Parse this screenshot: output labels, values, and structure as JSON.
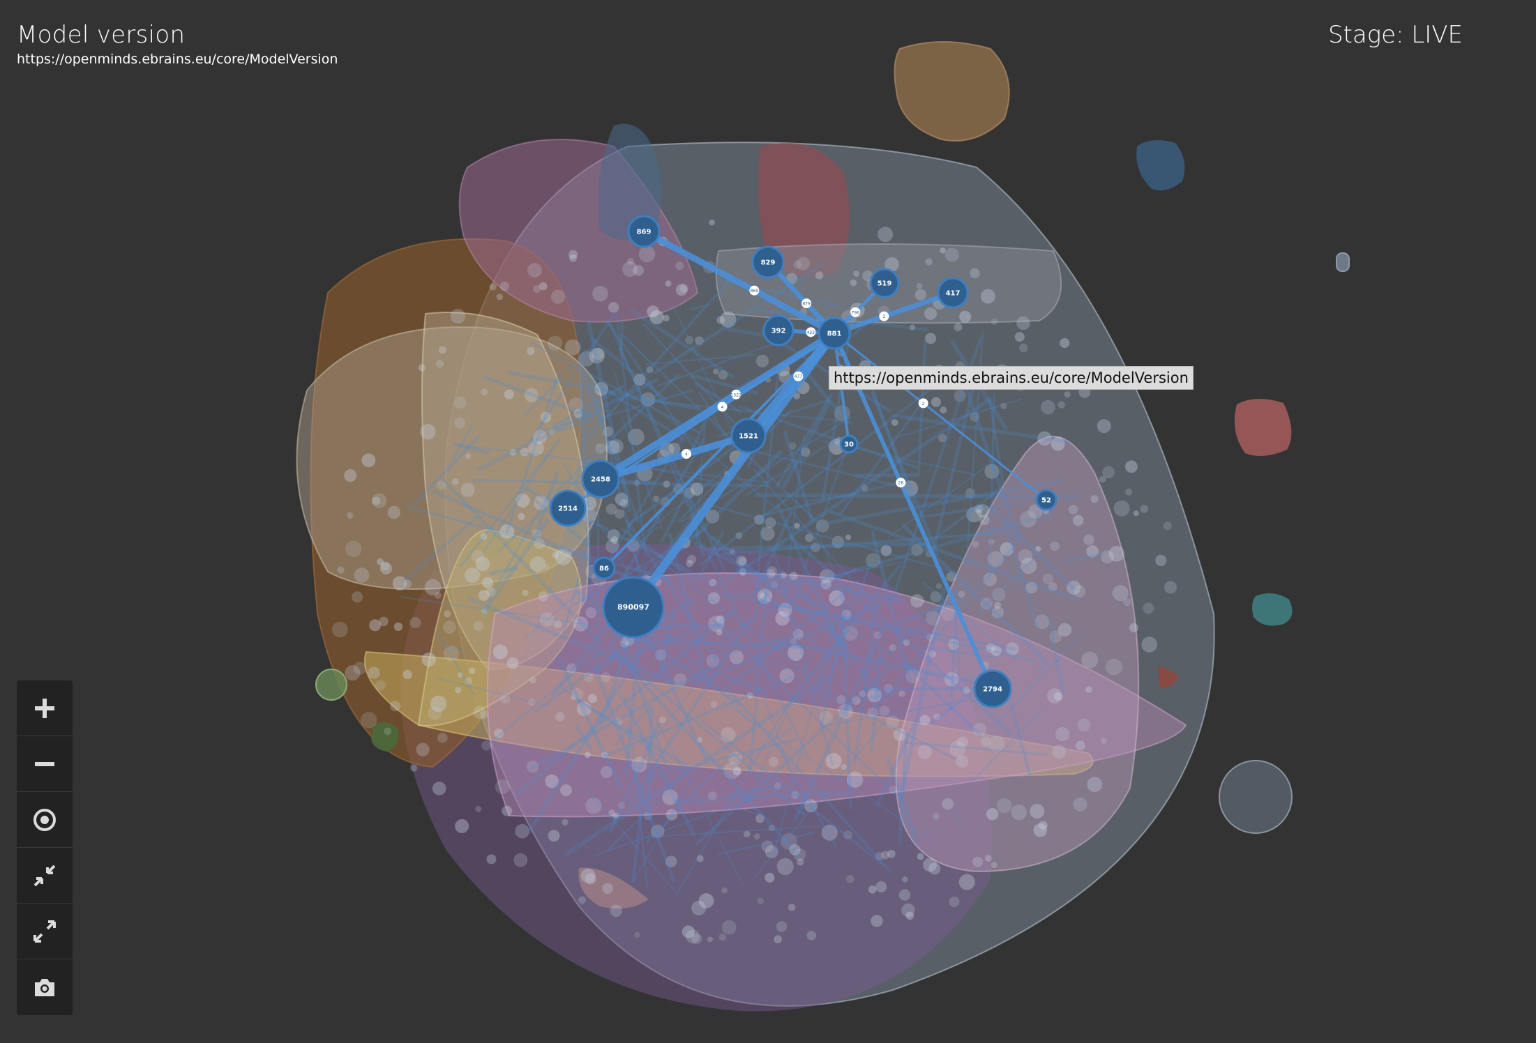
{
  "header": {
    "title": "Model version",
    "url": "https://openminds.ebrains.eu/core/ModelVersion"
  },
  "stage": {
    "label": "Stage: LIVE"
  },
  "tooltip": {
    "text": "https://openminds.ebrains.eu/core/ModelVersion"
  },
  "colors": {
    "background": "#333333",
    "node_fill": "#2f5f8f",
    "edge": "#4a8fd8",
    "edge_label_fill": "#ffffff"
  },
  "graph": {
    "focus_node": "881",
    "nodes": [
      {
        "id": "n869",
        "label": "869"
      },
      {
        "id": "n829",
        "label": "829"
      },
      {
        "id": "n519",
        "label": "519"
      },
      {
        "id": "n417",
        "label": "417"
      },
      {
        "id": "n392",
        "label": "392"
      },
      {
        "id": "n881",
        "label": "881"
      },
      {
        "id": "n1521",
        "label": "1521"
      },
      {
        "id": "n30",
        "label": "30"
      },
      {
        "id": "n2458",
        "label": "2458"
      },
      {
        "id": "n2514",
        "label": "2514"
      },
      {
        "id": "n52",
        "label": "52"
      },
      {
        "id": "n86",
        "label": "86"
      },
      {
        "id": "n890097",
        "label": "890097"
      },
      {
        "id": "n2794",
        "label": "2794"
      }
    ],
    "edges": [
      {
        "from": "n881",
        "to": "n869",
        "label": "869"
      },
      {
        "from": "n881",
        "to": "n829",
        "label": "879"
      },
      {
        "from": "n881",
        "to": "n519",
        "label": "796"
      },
      {
        "from": "n881",
        "to": "n417",
        "label": "2"
      },
      {
        "from": "n881",
        "to": "n392",
        "label": "422"
      },
      {
        "from": "n881",
        "to": "n1521",
        "label": "477"
      },
      {
        "from": "n881",
        "to": "n30",
        "label": "20"
      },
      {
        "from": "n881",
        "to": "n2458",
        "label": "1522"
      },
      {
        "from": "n881",
        "to": "n52",
        "label": "2"
      },
      {
        "from": "n881",
        "to": "n86",
        "label": "3"
      },
      {
        "from": "n881",
        "to": "n890097",
        "label": "1"
      },
      {
        "from": "n881",
        "to": "n2794",
        "label": "26"
      },
      {
        "from": "n1521",
        "to": "n2458",
        "label": "4"
      },
      {
        "from": "n881",
        "to": "n2514",
        "label": "4"
      }
    ]
  },
  "toolbar": {
    "items": [
      {
        "name": "zoom-in-button",
        "icon": "plus-icon"
      },
      {
        "name": "zoom-out-button",
        "icon": "minus-icon"
      },
      {
        "name": "center-button",
        "icon": "target-icon"
      },
      {
        "name": "compress-button",
        "icon": "compress-icon"
      },
      {
        "name": "expand-button",
        "icon": "expand-icon"
      },
      {
        "name": "screenshot-button",
        "icon": "camera-icon"
      }
    ]
  }
}
